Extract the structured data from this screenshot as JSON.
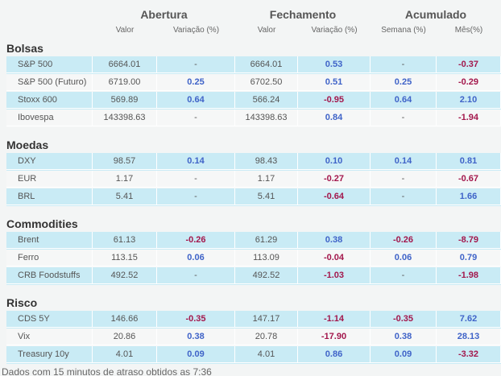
{
  "header": {
    "groups": [
      "Abertura",
      "Fechamento",
      "Acumulado"
    ],
    "columns": [
      "Valor",
      "Variação (%)",
      "Valor",
      "Variação (%)",
      "Semana (%)",
      "Mês(%)"
    ]
  },
  "sections": [
    {
      "title": "Bolsas",
      "rows": [
        [
          "S&P 500",
          "6664.01",
          "-",
          "6664.01",
          "0.53",
          "-",
          "-0.37"
        ],
        [
          "S&P 500 (Futuro)",
          "6719.00",
          "0.25",
          "6702.50",
          "0.51",
          "0.25",
          "-0.29"
        ],
        [
          "Stoxx 600",
          "569.89",
          "0.64",
          "566.24",
          "-0.95",
          "0.64",
          "2.10"
        ],
        [
          "Ibovespa",
          "143398.63",
          "-",
          "143398.63",
          "0.84",
          "-",
          "-1.94"
        ]
      ]
    },
    {
      "title": "Moedas",
      "rows": [
        [
          "DXY",
          "98.57",
          "0.14",
          "98.43",
          "0.10",
          "0.14",
          "0.81"
        ],
        [
          "EUR",
          "1.17",
          "-",
          "1.17",
          "-0.27",
          "-",
          "-0.67"
        ],
        [
          "BRL",
          "5.41",
          "-",
          "5.41",
          "-0.64",
          "-",
          "1.66"
        ]
      ]
    },
    {
      "title": "Commodities",
      "rows": [
        [
          "Brent",
          "61.13",
          "-0.26",
          "61.29",
          "0.38",
          "-0.26",
          "-8.79"
        ],
        [
          "Ferro",
          "113.15",
          "0.06",
          "113.09",
          "-0.04",
          "0.06",
          "0.79"
        ],
        [
          "CRB Foodstuffs",
          "492.52",
          "-",
          "492.52",
          "-1.03",
          "-",
          "-1.98"
        ]
      ]
    },
    {
      "title": "Risco",
      "rows": [
        [
          "CDS 5Y",
          "146.66",
          "-0.35",
          "147.17",
          "-1.14",
          "-0.35",
          "7.62"
        ],
        [
          "Vix",
          "20.86",
          "0.38",
          "20.78",
          "-17.90",
          "0.38",
          "28.13"
        ],
        [
          "Treasury 10y",
          "4.01",
          "0.09",
          "4.01",
          "0.86",
          "0.09",
          "-3.32"
        ]
      ]
    }
  ],
  "footer": "Dados com 15 minutos de atraso obtidos as 7:36"
}
